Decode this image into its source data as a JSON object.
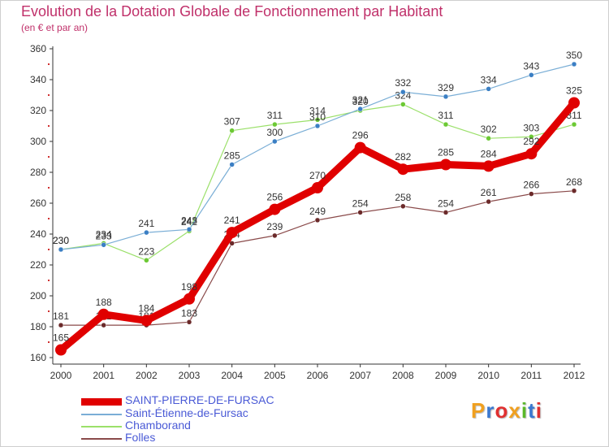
{
  "chart_data": {
    "type": "line",
    "title": "Evolution de la Dotation Globale de Fonctionnement par Habitant",
    "subtitle": "(en € et par an)",
    "xlabel": "",
    "ylabel": "",
    "x": [
      "2000",
      "2001",
      "2002",
      "2003",
      "2004",
      "2005",
      "2006",
      "2007",
      "2008",
      "2009",
      "2010",
      "2011",
      "2012"
    ],
    "ylim": [
      160,
      360
    ],
    "yticks": [
      160,
      180,
      200,
      220,
      240,
      260,
      280,
      300,
      320,
      340,
      360
    ],
    "grid": false,
    "series": [
      {
        "name": "SAINT-PIERRE-DE-FURSAC",
        "color": "#e00000",
        "marker": "#e00000",
        "label_color": "#333333",
        "width": 9,
        "values": [
          165,
          188,
          184,
          198,
          241,
          256,
          270,
          296,
          282,
          285,
          284,
          292,
          325
        ]
      },
      {
        "name": "Saint-Étienne-de-Fursac",
        "color": "#7aaed6",
        "marker": "#3b7fc4",
        "label_color": "#333333",
        "width": 1.2,
        "values": [
          230,
          233,
          241,
          243,
          285,
          300,
          310,
          321,
          332,
          329,
          334,
          343,
          350
        ]
      },
      {
        "name": "Chamborand",
        "color": "#9be06a",
        "marker": "#6cc934",
        "label_color": "#333333",
        "width": 1.2,
        "values": [
          230,
          234,
          223,
          242,
          307,
          311,
          314,
          320,
          324,
          311,
          302,
          303,
          311
        ]
      },
      {
        "name": "Folles",
        "color": "#8a4a4a",
        "marker": "#6b2a2a",
        "label_color": "#333333",
        "width": 1.2,
        "values": [
          181,
          181,
          181,
          183,
          234,
          239,
          249,
          254,
          258,
          254,
          261,
          266,
          268
        ]
      }
    ]
  },
  "logo": {
    "letters": [
      {
        "char": "P",
        "color": "#f0a020"
      },
      {
        "char": "r",
        "color": "#3a78d0"
      },
      {
        "char": "o",
        "color": "#e03030"
      },
      {
        "char": "x",
        "color": "#f0a020"
      },
      {
        "char": "i",
        "color": "#5ab82a"
      },
      {
        "char": "t",
        "color": "#3a78d0"
      },
      {
        "char": "i",
        "color": "#e03030"
      }
    ]
  }
}
